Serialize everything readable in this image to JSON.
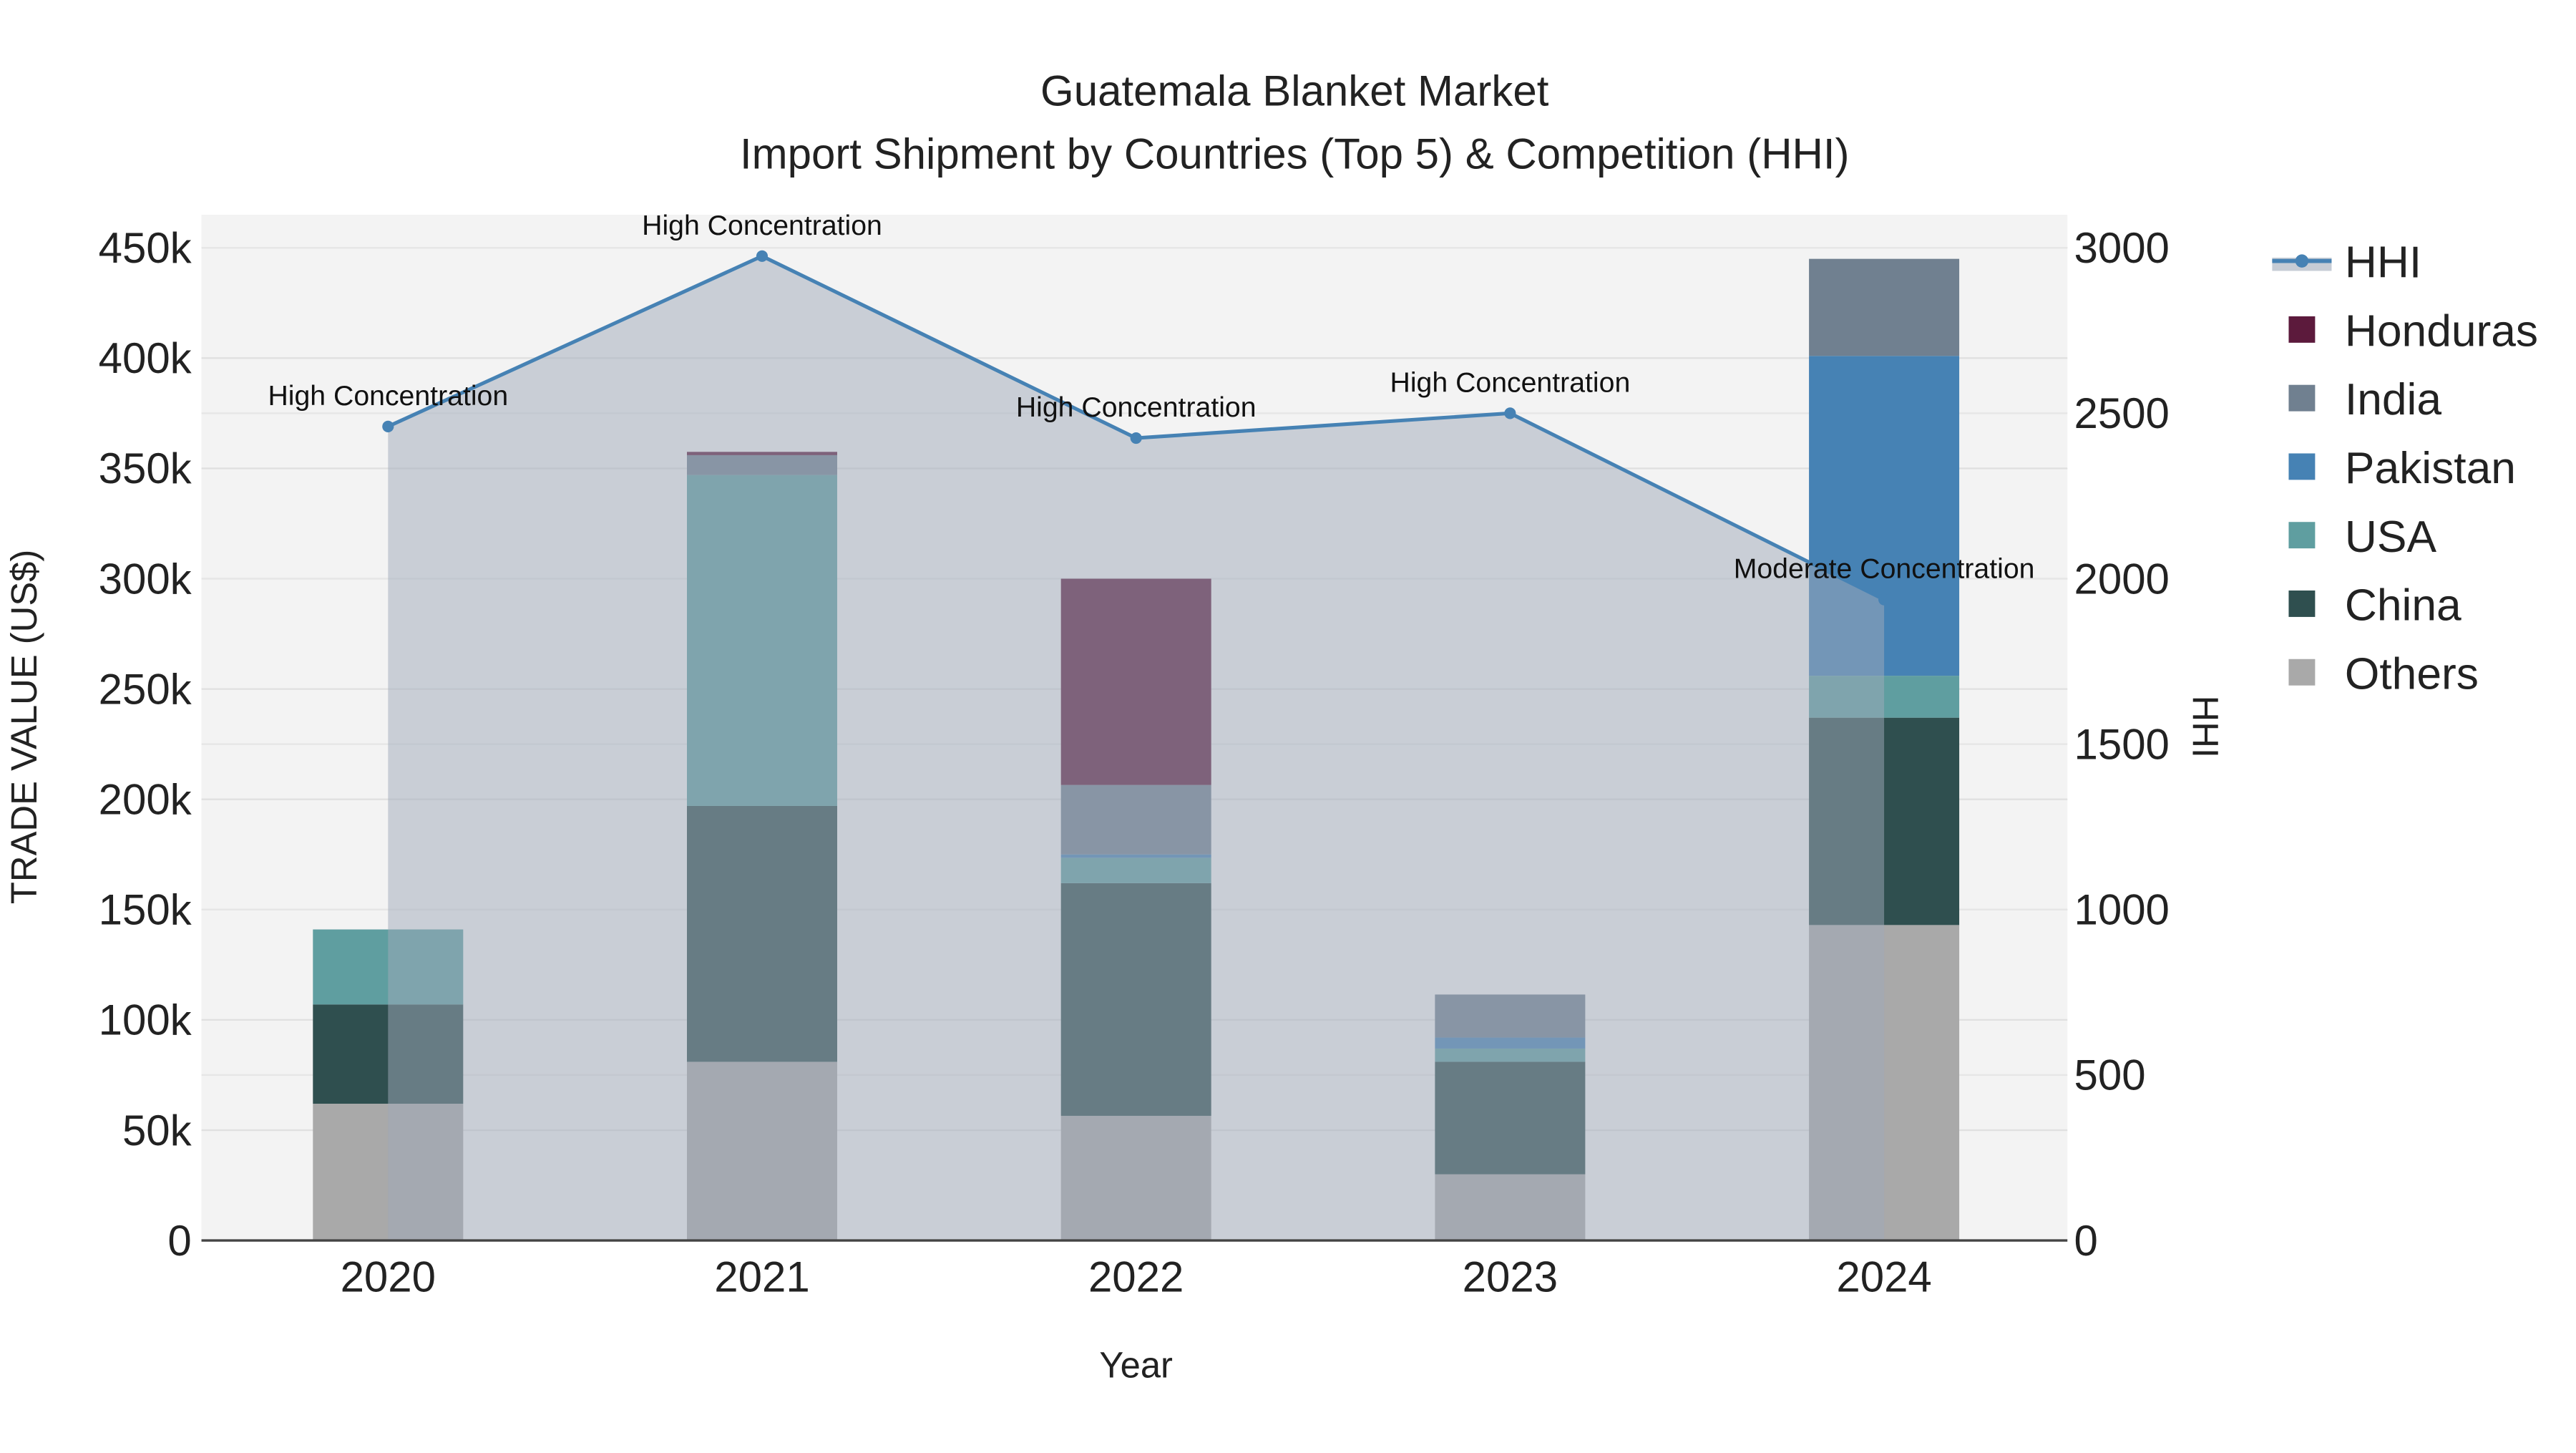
{
  "chart_data": {
    "type": "bar",
    "stacked": true,
    "title": "Guatemala Blanket Market",
    "subtitle": "Import Shipment by Countries (Top 5) & Competition (HHI)",
    "xlabel": "Year",
    "ylabel": "TRADE VALUE (US$)",
    "y2label": "HHI",
    "categories": [
      "2020",
      "2021",
      "2022",
      "2023",
      "2024"
    ],
    "ylim": [
      0,
      465000
    ],
    "y2lim": [
      0,
      3100
    ],
    "yticks": [
      0,
      50000,
      100000,
      150000,
      200000,
      250000,
      300000,
      350000,
      400000,
      450000
    ],
    "ytick_labels": [
      "0",
      "50k",
      "100k",
      "150k",
      "200k",
      "250k",
      "300k",
      "350k",
      "400k",
      "450k"
    ],
    "y2ticks": [
      0,
      500,
      1000,
      1500,
      2000,
      2500,
      3000
    ],
    "y2tick_labels": [
      "0",
      "500",
      "1000",
      "1500",
      "2000",
      "2500",
      "3000"
    ],
    "series": [
      {
        "name": "Others",
        "color": "#a9a9a9",
        "values": [
          62000,
          81000,
          56500,
          30000,
          143000
        ]
      },
      {
        "name": "China",
        "color": "#2f4f4f",
        "values": [
          45000,
          116000,
          105500,
          51000,
          94000
        ]
      },
      {
        "name": "USA",
        "color": "#5f9ea0",
        "values": [
          34000,
          150000,
          11500,
          6000,
          19000
        ]
      },
      {
        "name": "Pakistan",
        "color": "#4682b4",
        "values": [
          0,
          0,
          1500,
          5000,
          145000
        ]
      },
      {
        "name": "India",
        "color": "#708090",
        "values": [
          0,
          9000,
          31500,
          19500,
          44000
        ]
      },
      {
        "name": "Honduras",
        "color": "#5c1a3c",
        "values": [
          0,
          1500,
          93500,
          0,
          0
        ]
      }
    ],
    "hhi": {
      "name": "HHI",
      "color": "#4682b4",
      "values": [
        2460,
        2975,
        2425,
        2500,
        1937
      ],
      "annotations": [
        "High Concentration",
        "High Concentration",
        "High Concentration",
        "High Concentration",
        "Moderate Concentration"
      ]
    },
    "legend": [
      "HHI",
      "Honduras",
      "India",
      "Pakistan",
      "USA",
      "China",
      "Others"
    ],
    "legend_position": "right",
    "grid": true
  }
}
